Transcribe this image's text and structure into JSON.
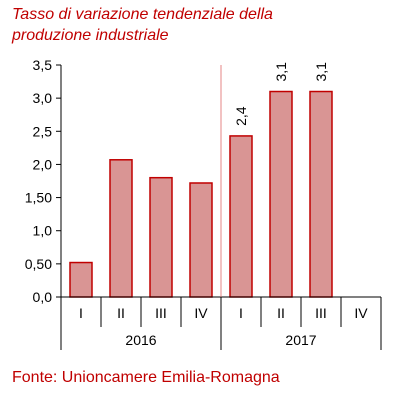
{
  "title_lines": [
    "Tasso di variazione tendenziale della",
    "produzione industriale"
  ],
  "source": "Fonte: Unioncamere Emilia-Romagna",
  "colors": {
    "accent": "#C00000",
    "bar_fill": "#D99594",
    "bar_stroke": "#C00000",
    "axis": "#000000",
    "separator": "#E06666"
  },
  "chart_data": {
    "type": "bar",
    "title": "Tasso di variazione tendenziale della produzione industriale",
    "xlabel": "",
    "ylabel": "",
    "ylim": [
      0,
      3.5
    ],
    "yticks": [
      0,
      0.5,
      1,
      1.5,
      2,
      2.5,
      3,
      3.5
    ],
    "ytick_labels": [
      "0,0",
      "0,50",
      "1,0",
      "1,50",
      "2,0",
      "2,5",
      "3,0",
      "3,5"
    ],
    "grid": false,
    "categories": [
      "I",
      "II",
      "III",
      "IV",
      "I",
      "II",
      "III",
      "IV"
    ],
    "groups": [
      {
        "label": "2016",
        "count": 4
      },
      {
        "label": "2017",
        "count": 4
      }
    ],
    "values": [
      0.52,
      2.07,
      1.8,
      1.72,
      2.43,
      3.1,
      3.1,
      null
    ],
    "data_labels": [
      null,
      null,
      null,
      null,
      "2,4",
      "3,1",
      "3,1",
      null
    ]
  }
}
